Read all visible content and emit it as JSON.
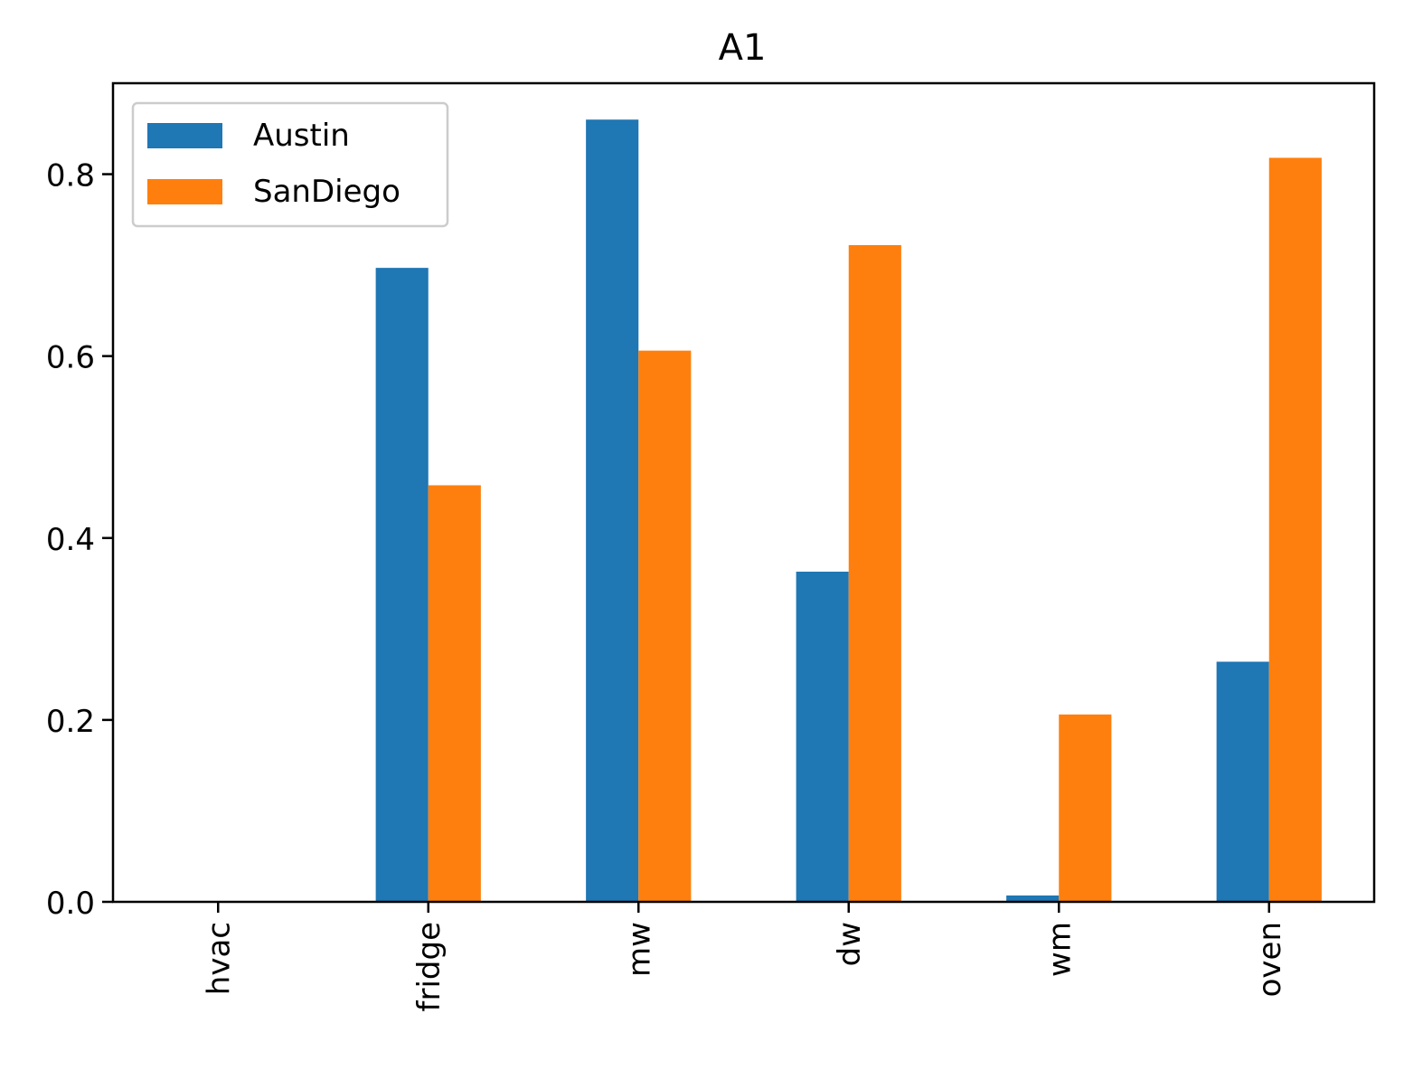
{
  "chart_data": {
    "type": "bar",
    "title": "A1",
    "xlabel": "",
    "ylabel": "",
    "categories": [
      "hvac",
      "fridge",
      "mw",
      "dw",
      "wm",
      "oven"
    ],
    "series": [
      {
        "name": "Austin",
        "color": "#1f77b4",
        "values": [
          0.0,
          0.697,
          0.86,
          0.363,
          0.007,
          0.264
        ]
      },
      {
        "name": "SanDiego",
        "color": "#ff7f0e",
        "values": [
          0.0,
          0.458,
          0.606,
          0.722,
          0.206,
          0.818
        ]
      }
    ],
    "ylim": [
      0,
      0.9
    ],
    "yticks": [
      0.0,
      0.2,
      0.4,
      0.6,
      0.8
    ],
    "ytick_labels": [
      "0.0",
      "0.2",
      "0.4",
      "0.6",
      "0.8"
    ],
    "grid": false,
    "legend_position": "top-left",
    "xtick_rotation": "vertical"
  }
}
